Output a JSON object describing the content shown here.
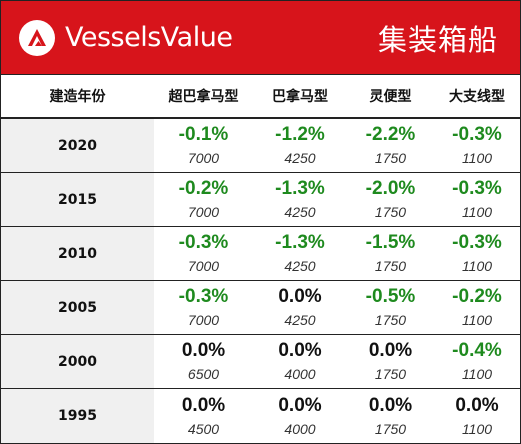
{
  "header": {
    "brand": "VesselsValue",
    "title": "集装箱船",
    "brand_color": "#d7141b"
  },
  "columns": [
    "建造年份",
    "超巴拿马型",
    "巴拿马型",
    "灵便型",
    "大支线型"
  ],
  "rows": [
    {
      "year": "2020",
      "cells": [
        {
          "pct": "-0.1%",
          "value": "7000"
        },
        {
          "pct": "-1.2%",
          "value": "4250"
        },
        {
          "pct": "-2.2%",
          "value": "1750"
        },
        {
          "pct": "-0.3%",
          "value": "1100"
        }
      ]
    },
    {
      "year": "2015",
      "cells": [
        {
          "pct": "-0.2%",
          "value": "7000"
        },
        {
          "pct": "-1.3%",
          "value": "4250"
        },
        {
          "pct": "-2.0%",
          "value": "1750"
        },
        {
          "pct": "-0.3%",
          "value": "1100"
        }
      ]
    },
    {
      "year": "2010",
      "cells": [
        {
          "pct": "-0.3%",
          "value": "7000"
        },
        {
          "pct": "-1.3%",
          "value": "4250"
        },
        {
          "pct": "-1.5%",
          "value": "1750"
        },
        {
          "pct": "-0.3%",
          "value": "1100"
        }
      ]
    },
    {
      "year": "2005",
      "cells": [
        {
          "pct": "-0.3%",
          "value": "7000"
        },
        {
          "pct": "0.0%",
          "value": "4250"
        },
        {
          "pct": "-0.5%",
          "value": "1750"
        },
        {
          "pct": "-0.2%",
          "value": "1100"
        }
      ]
    },
    {
      "year": "2000",
      "cells": [
        {
          "pct": "0.0%",
          "value": "6500"
        },
        {
          "pct": "0.0%",
          "value": "4000"
        },
        {
          "pct": "0.0%",
          "value": "1750"
        },
        {
          "pct": "-0.4%",
          "value": "1100"
        }
      ]
    },
    {
      "year": "1995",
      "cells": [
        {
          "pct": "0.0%",
          "value": "4500"
        },
        {
          "pct": "0.0%",
          "value": "4000"
        },
        {
          "pct": "0.0%",
          "value": "1750"
        },
        {
          "pct": "0.0%",
          "value": "1100"
        }
      ]
    }
  ],
  "colors": {
    "negative": "#1e8a1e",
    "neutral": "#111111"
  }
}
